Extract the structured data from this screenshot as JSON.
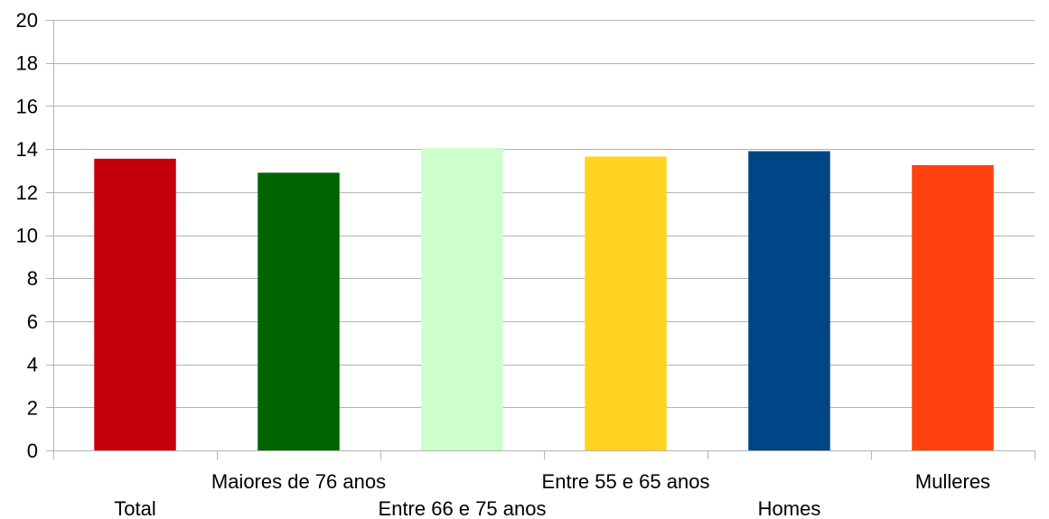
{
  "chart_data": {
    "type": "bar",
    "categories": [
      "Total",
      "Maiores de 76 anos",
      "Entre 66 e 75 anos",
      "Entre 55 e 65 anos",
      "Homes",
      "Mulleres"
    ],
    "values": [
      13.55,
      12.9,
      14.05,
      13.65,
      13.9,
      13.25
    ],
    "colors": [
      "#c5000b",
      "#006400",
      "#ccffcc",
      "#ffd320",
      "#004586",
      "#ff420e"
    ],
    "ylim": [
      0,
      20
    ],
    "yticks": [
      "0",
      "2",
      "4",
      "6",
      "8",
      "10",
      "12",
      "14",
      "16",
      "18",
      "20"
    ],
    "grid": true,
    "legend": "none"
  }
}
